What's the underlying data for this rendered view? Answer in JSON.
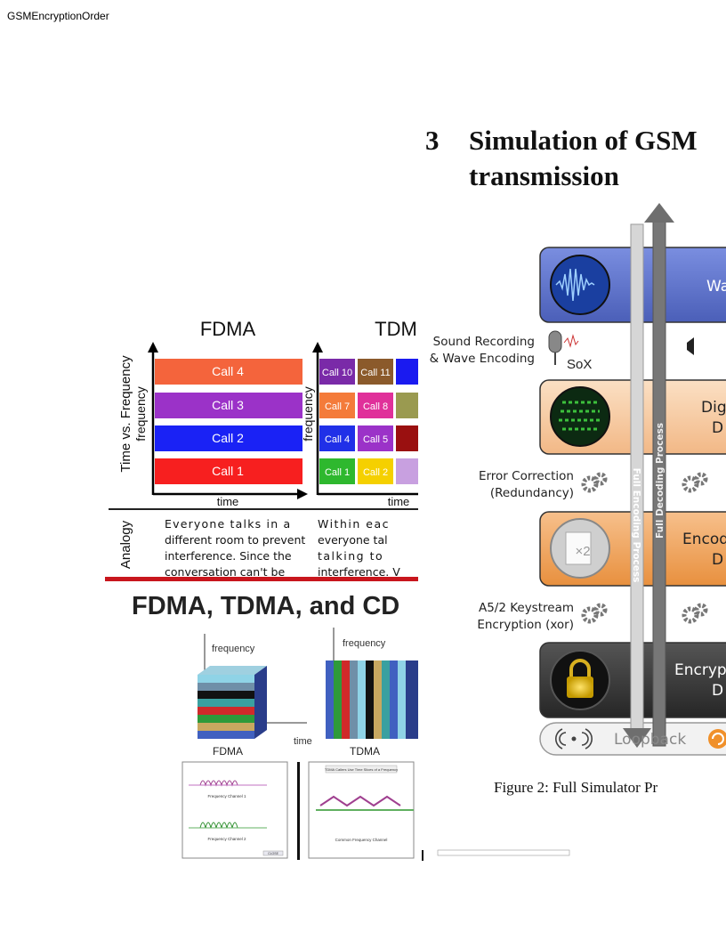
{
  "header": {
    "title": "GSMEncryptionOrder"
  },
  "section": {
    "number": "3",
    "title_lines": [
      "Simulation of GSM",
      "transmission"
    ]
  },
  "left_figure": {
    "fdma": {
      "title": "FDMA",
      "y_label": "Time vs. Frequency",
      "axis_y": "frequency",
      "axis_x": "time",
      "calls": [
        "Call 4",
        "Call 3",
        "Call 2",
        "Call 1"
      ]
    },
    "tdma": {
      "title": "TDM",
      "axis_y": "frequency",
      "axis_x": "time",
      "calls": [
        [
          "Call 10",
          "Call 11"
        ],
        [
          "Call 7",
          "Call 8"
        ],
        [
          "Call 4",
          "Call 5"
        ],
        [
          "Call 1",
          "Call 2"
        ]
      ]
    },
    "analogy": {
      "label": "Analogy",
      "fdma_lines": [
        "Everyone talks in a",
        "different room to prevent",
        "interference.  Since the",
        "conversation can't be"
      ],
      "tdma_lines": [
        "Within eac",
        "everyone tal",
        "talking to",
        "interference. V"
      ]
    },
    "banner": "FDMA, TDMA, and CD",
    "blocks": {
      "fdma_axis_y": "frequency",
      "fdma_axis_x": "time",
      "tdma_axis_y": "frequency",
      "labels": [
        "FDMA",
        "TDMA"
      ]
    },
    "screens": {
      "channel_1": "Frequency Channel 1",
      "channel_2": "Frequency Channel 2",
      "tdma_title": "TDMA Callers Use Time Slices of a Frequency",
      "common": "Common Frequency Channel",
      "close": "CLOSE"
    }
  },
  "right_figure": {
    "arrows": [
      "Full Encoding Process",
      "Full Decoding Process"
    ],
    "stages": [
      [
        "Wa"
      ],
      [
        "Dig",
        "D"
      ],
      [
        "Encod",
        "D"
      ],
      [
        "Encrypt",
        "D"
      ]
    ],
    "side_labels": [
      [
        "Sound Recording",
        "& Wave Encoding"
      ],
      [
        "Error Correction",
        "(Redundancy)"
      ],
      [
        "A5/2 Keystream",
        "Encryption (xor)"
      ]
    ],
    "sox": "SoX",
    "loopback": "Loopback",
    "caption": "Figure 2: Full Simulator Pr"
  }
}
